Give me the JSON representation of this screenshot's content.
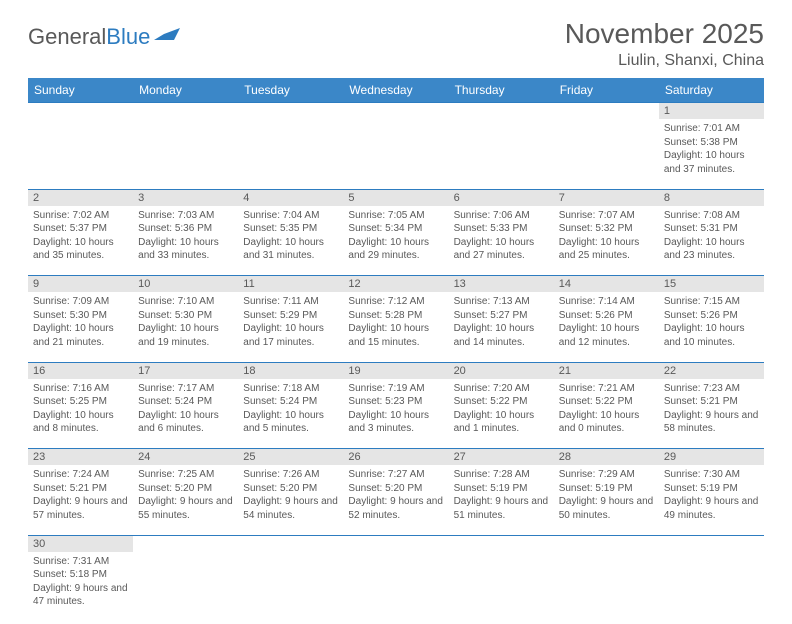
{
  "brand": {
    "part1": "General",
    "part2": "Blue"
  },
  "title": "November 2025",
  "location": "Liulin, Shanxi, China",
  "dayNames": [
    "Sunday",
    "Monday",
    "Tuesday",
    "Wednesday",
    "Thursday",
    "Friday",
    "Saturday"
  ],
  "colors": {
    "headerBg": "#3b87c8",
    "headerText": "#ffffff",
    "dayNumBg": "#e5e5e5",
    "border": "#2d7cc0",
    "text": "#595959",
    "background": "#ffffff"
  },
  "typography": {
    "titleSize": 28,
    "locationSize": 16,
    "headerSize": 12,
    "dayNumSize": 11,
    "cellSize": 10
  },
  "layout": {
    "columns": 7,
    "rows": 6
  },
  "weeks": [
    [
      null,
      null,
      null,
      null,
      null,
      null,
      {
        "n": "1",
        "sunrise": "7:01 AM",
        "sunset": "5:38 PM",
        "dayH": "10",
        "dayM": "37"
      }
    ],
    [
      {
        "n": "2",
        "sunrise": "7:02 AM",
        "sunset": "5:37 PM",
        "dayH": "10",
        "dayM": "35"
      },
      {
        "n": "3",
        "sunrise": "7:03 AM",
        "sunset": "5:36 PM",
        "dayH": "10",
        "dayM": "33"
      },
      {
        "n": "4",
        "sunrise": "7:04 AM",
        "sunset": "5:35 PM",
        "dayH": "10",
        "dayM": "31"
      },
      {
        "n": "5",
        "sunrise": "7:05 AM",
        "sunset": "5:34 PM",
        "dayH": "10",
        "dayM": "29"
      },
      {
        "n": "6",
        "sunrise": "7:06 AM",
        "sunset": "5:33 PM",
        "dayH": "10",
        "dayM": "27"
      },
      {
        "n": "7",
        "sunrise": "7:07 AM",
        "sunset": "5:32 PM",
        "dayH": "10",
        "dayM": "25"
      },
      {
        "n": "8",
        "sunrise": "7:08 AM",
        "sunset": "5:31 PM",
        "dayH": "10",
        "dayM": "23"
      }
    ],
    [
      {
        "n": "9",
        "sunrise": "7:09 AM",
        "sunset": "5:30 PM",
        "dayH": "10",
        "dayM": "21"
      },
      {
        "n": "10",
        "sunrise": "7:10 AM",
        "sunset": "5:30 PM",
        "dayH": "10",
        "dayM": "19"
      },
      {
        "n": "11",
        "sunrise": "7:11 AM",
        "sunset": "5:29 PM",
        "dayH": "10",
        "dayM": "17"
      },
      {
        "n": "12",
        "sunrise": "7:12 AM",
        "sunset": "5:28 PM",
        "dayH": "10",
        "dayM": "15"
      },
      {
        "n": "13",
        "sunrise": "7:13 AM",
        "sunset": "5:27 PM",
        "dayH": "10",
        "dayM": "14"
      },
      {
        "n": "14",
        "sunrise": "7:14 AM",
        "sunset": "5:26 PM",
        "dayH": "10",
        "dayM": "12"
      },
      {
        "n": "15",
        "sunrise": "7:15 AM",
        "sunset": "5:26 PM",
        "dayH": "10",
        "dayM": "10"
      }
    ],
    [
      {
        "n": "16",
        "sunrise": "7:16 AM",
        "sunset": "5:25 PM",
        "dayH": "10",
        "dayM": "8"
      },
      {
        "n": "17",
        "sunrise": "7:17 AM",
        "sunset": "5:24 PM",
        "dayH": "10",
        "dayM": "6"
      },
      {
        "n": "18",
        "sunrise": "7:18 AM",
        "sunset": "5:24 PM",
        "dayH": "10",
        "dayM": "5"
      },
      {
        "n": "19",
        "sunrise": "7:19 AM",
        "sunset": "5:23 PM",
        "dayH": "10",
        "dayM": "3"
      },
      {
        "n": "20",
        "sunrise": "7:20 AM",
        "sunset": "5:22 PM",
        "dayH": "10",
        "dayM": "1"
      },
      {
        "n": "21",
        "sunrise": "7:21 AM",
        "sunset": "5:22 PM",
        "dayH": "10",
        "dayM": "0"
      },
      {
        "n": "22",
        "sunrise": "7:23 AM",
        "sunset": "5:21 PM",
        "dayH": "9",
        "dayM": "58"
      }
    ],
    [
      {
        "n": "23",
        "sunrise": "7:24 AM",
        "sunset": "5:21 PM",
        "dayH": "9",
        "dayM": "57"
      },
      {
        "n": "24",
        "sunrise": "7:25 AM",
        "sunset": "5:20 PM",
        "dayH": "9",
        "dayM": "55"
      },
      {
        "n": "25",
        "sunrise": "7:26 AM",
        "sunset": "5:20 PM",
        "dayH": "9",
        "dayM": "54"
      },
      {
        "n": "26",
        "sunrise": "7:27 AM",
        "sunset": "5:20 PM",
        "dayH": "9",
        "dayM": "52"
      },
      {
        "n": "27",
        "sunrise": "7:28 AM",
        "sunset": "5:19 PM",
        "dayH": "9",
        "dayM": "51"
      },
      {
        "n": "28",
        "sunrise": "7:29 AM",
        "sunset": "5:19 PM",
        "dayH": "9",
        "dayM": "50"
      },
      {
        "n": "29",
        "sunrise": "7:30 AM",
        "sunset": "5:19 PM",
        "dayH": "9",
        "dayM": "49"
      }
    ],
    [
      {
        "n": "30",
        "sunrise": "7:31 AM",
        "sunset": "5:18 PM",
        "dayH": "9",
        "dayM": "47"
      },
      null,
      null,
      null,
      null,
      null,
      null
    ]
  ],
  "labels": {
    "sunrise": "Sunrise: ",
    "sunset": "Sunset: ",
    "daylight1": "Daylight: ",
    "daylight2": " hours and ",
    "daylight3": " minutes."
  }
}
